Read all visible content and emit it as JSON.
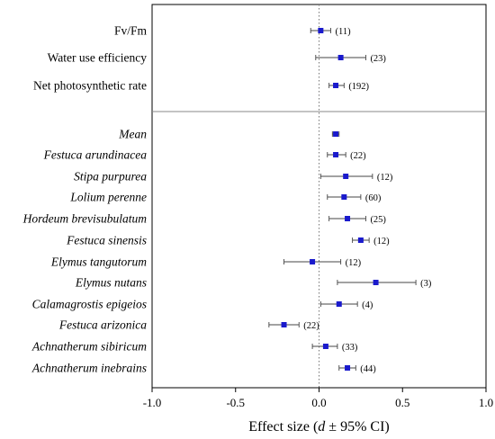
{
  "chart_data": {
    "type": "forest",
    "xlabel_prefix": "Effect size (",
    "xlabel_italic": "d",
    "xlabel_suffix": " ±  95% CI)",
    "xlim": [
      -1.0,
      1.0
    ],
    "x_ticks": [
      {
        "value": -1.0,
        "label": "-1.0"
      },
      {
        "value": -0.5,
        "label": "-0.5"
      },
      {
        "value": 0.0,
        "label": "0.0"
      },
      {
        "value": 0.5,
        "label": "0.5"
      },
      {
        "value": 1.0,
        "label": "1.0"
      }
    ],
    "reference_line": 0.0,
    "colors": {
      "point": "#1a1acc",
      "whisker": "#444444",
      "axis": "#000000",
      "divider": "#888888"
    },
    "panels": [
      {
        "name": "traits",
        "rows": [
          {
            "label": "Fv/Fm",
            "italic": false,
            "mean": 0.01,
            "lo": -0.05,
            "hi": 0.07,
            "n": "(11)"
          },
          {
            "label": "Water use efficiency",
            "italic": false,
            "mean": 0.13,
            "lo": -0.02,
            "hi": 0.28,
            "n": "(23)"
          },
          {
            "label": "Net photosynthetic rate",
            "italic": false,
            "mean": 0.1,
            "lo": 0.06,
            "hi": 0.15,
            "n": "(192)"
          }
        ]
      },
      {
        "name": "species",
        "rows": [
          {
            "label": "Mean",
            "italic": true,
            "mean": 0.1,
            "lo": 0.08,
            "hi": 0.12,
            "n": ""
          },
          {
            "label": "Festuca arundinacea",
            "italic": true,
            "mean": 0.1,
            "lo": 0.05,
            "hi": 0.16,
            "n": "(22)"
          },
          {
            "label": "Stipa purpurea",
            "italic": true,
            "mean": 0.16,
            "lo": 0.01,
            "hi": 0.32,
            "n": "(12)"
          },
          {
            "label": "Lolium perenne",
            "italic": true,
            "mean": 0.15,
            "lo": 0.05,
            "hi": 0.25,
            "n": "(60)"
          },
          {
            "label": "Hordeum brevisubulatum",
            "italic": true,
            "mean": 0.17,
            "lo": 0.06,
            "hi": 0.28,
            "n": "(25)"
          },
          {
            "label": "Festuca sinensis",
            "italic": true,
            "mean": 0.25,
            "lo": 0.2,
            "hi": 0.3,
            "n": "(12)"
          },
          {
            "label": "Elymus tangutorum",
            "italic": true,
            "mean": -0.04,
            "lo": -0.21,
            "hi": 0.13,
            "n": "(12)"
          },
          {
            "label": "Elymus nutans",
            "italic": true,
            "mean": 0.34,
            "lo": 0.11,
            "hi": 0.58,
            "n": "(3)"
          },
          {
            "label": "Calamagrostis epigeios",
            "italic": true,
            "mean": 0.12,
            "lo": 0.01,
            "hi": 0.23,
            "n": "(4)"
          },
          {
            "label": "Festuca arizonica",
            "italic": true,
            "mean": -0.21,
            "lo": -0.3,
            "hi": -0.12,
            "n": "(22)"
          },
          {
            "label": "Achnatherum sibiricum",
            "italic": true,
            "mean": 0.04,
            "lo": -0.04,
            "hi": 0.11,
            "n": "(33)"
          },
          {
            "label": "Achnatherum inebrains",
            "italic": true,
            "mean": 0.17,
            "lo": 0.12,
            "hi": 0.22,
            "n": "(44)"
          }
        ]
      }
    ]
  }
}
